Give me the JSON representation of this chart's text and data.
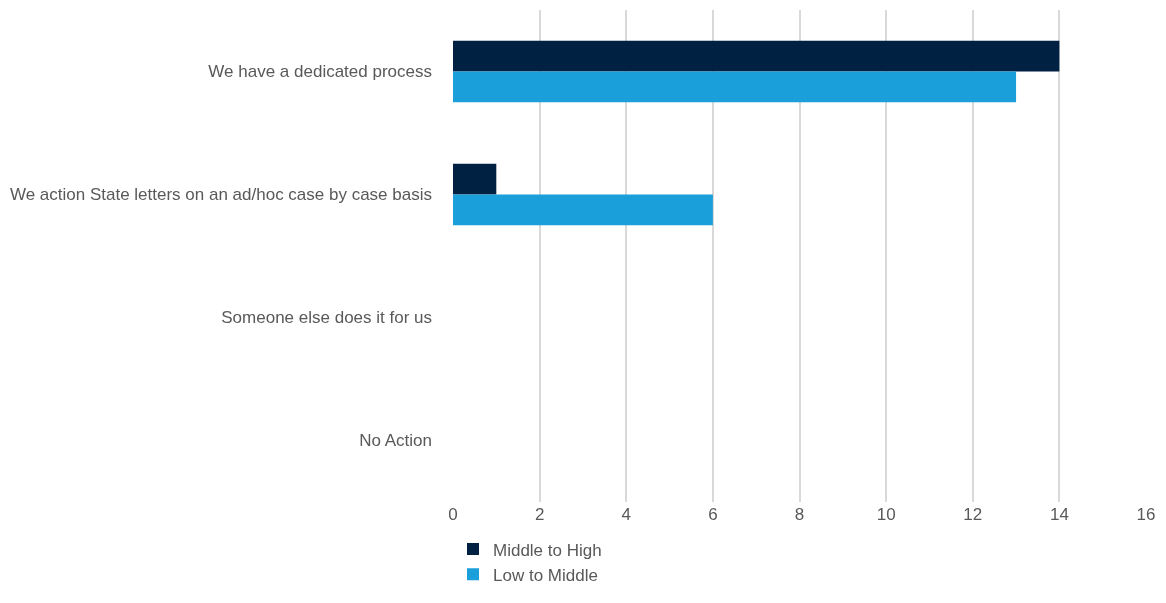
{
  "chart_data": {
    "type": "bar",
    "orientation": "horizontal",
    "categories": [
      "We have a dedicated process",
      "We action State letters on an ad/hoc case by case basis",
      "Someone else does it for us",
      "No Action"
    ],
    "series": [
      {
        "name": "Middle to High",
        "color": "#002142",
        "values": [
          14,
          1,
          0,
          0
        ]
      },
      {
        "name": "Low to Middle",
        "color": "#1b9fda",
        "values": [
          13,
          6,
          0,
          0
        ]
      }
    ],
    "xlim": [
      0,
      16
    ],
    "xticks": [
      0,
      2,
      4,
      6,
      8,
      10,
      12,
      14,
      16
    ],
    "grid": "x",
    "legend": "bottom"
  }
}
